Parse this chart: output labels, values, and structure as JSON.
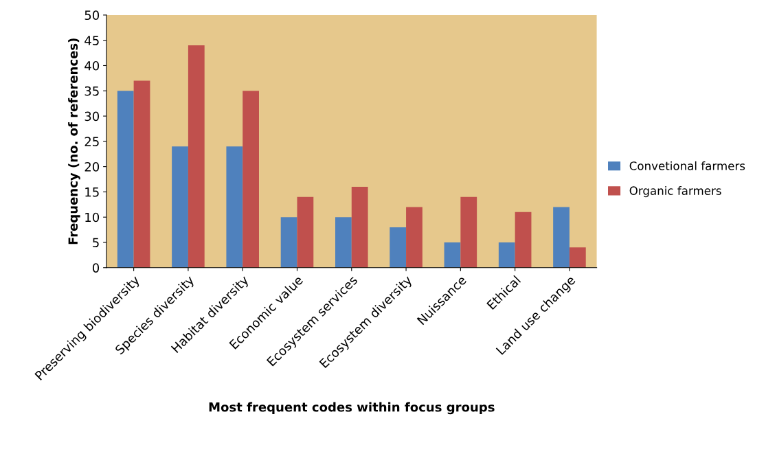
{
  "chart_data": {
    "type": "bar",
    "xlabel": "Most frequent codes within focus groups",
    "ylabel": "Frequency (no. of references)",
    "categories": [
      "Preserving biodiversity",
      "Species diversity",
      "Habitat diversity",
      "Economic value",
      "Ecosystem services",
      "Ecosystem diversity",
      "Nuissance",
      "Ethical",
      "Land use change"
    ],
    "series": [
      {
        "name": "Convetional farmers",
        "color": "#4f81bd",
        "values": [
          35,
          24,
          24,
          10,
          10,
          8,
          5,
          5,
          12
        ]
      },
      {
        "name": "Organic farmers",
        "color": "#c0504d",
        "values": [
          37,
          44,
          35,
          14,
          16,
          12,
          14,
          11,
          4
        ]
      }
    ],
    "ylim": [
      0,
      50
    ],
    "yticks": [
      0,
      5,
      10,
      15,
      20,
      25,
      30,
      35,
      40,
      45,
      50
    ],
    "grid": false,
    "legend": "right"
  }
}
